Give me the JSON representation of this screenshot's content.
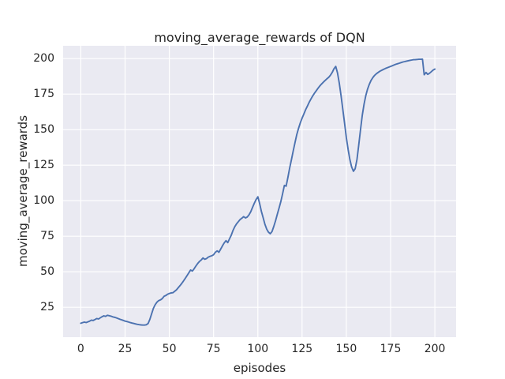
{
  "figure": {
    "title": "moving_average_rewards of DQN"
  },
  "chart_data": {
    "type": "line",
    "title": "moving_average_rewards of DQN",
    "xlabel": "episodes",
    "ylabel": "moving_average_rewards",
    "x_ticks": [
      0,
      25,
      50,
      75,
      100,
      125,
      150,
      175,
      200
    ],
    "y_ticks": [
      25,
      50,
      75,
      100,
      125,
      150,
      175,
      200
    ],
    "xlim": [
      -10,
      212
    ],
    "ylim": [
      4,
      209
    ],
    "grid": true,
    "legend": "none",
    "colors": {
      "line": "#4c72b0",
      "axes_background": "#eaeaf2",
      "gridline": "#ffffff",
      "figure_background": "#ffffff",
      "text": "#262626"
    },
    "series": [
      {
        "name": "DQN moving average reward",
        "points": [
          [
            0,
            13.8
          ],
          [
            1,
            14.2
          ],
          [
            2,
            14.6
          ],
          [
            3,
            14.3
          ],
          [
            4,
            14.8
          ],
          [
            5,
            15.3
          ],
          [
            6,
            16.0
          ],
          [
            7,
            15.7
          ],
          [
            8,
            16.4
          ],
          [
            9,
            17.1
          ],
          [
            10,
            16.8
          ],
          [
            11,
            17.6
          ],
          [
            12,
            18.4
          ],
          [
            13,
            19.0
          ],
          [
            14,
            18.6
          ],
          [
            15,
            19.4
          ],
          [
            16,
            19.1
          ],
          [
            17,
            18.8
          ],
          [
            18,
            18.3
          ],
          [
            19,
            18.0
          ],
          [
            20,
            17.6
          ],
          [
            21,
            17.1
          ],
          [
            22,
            16.6
          ],
          [
            23,
            16.2
          ],
          [
            24,
            15.8
          ],
          [
            25,
            15.3
          ],
          [
            26,
            15.0
          ],
          [
            27,
            14.6
          ],
          [
            28,
            14.2
          ],
          [
            29,
            13.9
          ],
          [
            30,
            13.6
          ],
          [
            31,
            13.3
          ],
          [
            32,
            13.0
          ],
          [
            33,
            12.8
          ],
          [
            34,
            12.6
          ],
          [
            35,
            12.5
          ],
          [
            36,
            12.5
          ],
          [
            37,
            12.7
          ],
          [
            38,
            13.6
          ],
          [
            39,
            16.5
          ],
          [
            40,
            20.5
          ],
          [
            41,
            24.3
          ],
          [
            42,
            26.8
          ],
          [
            43,
            28.6
          ],
          [
            44,
            29.7
          ],
          [
            45,
            30.2
          ],
          [
            46,
            31.1
          ],
          [
            47,
            32.7
          ],
          [
            48,
            33.3
          ],
          [
            49,
            34.2
          ],
          [
            50,
            34.7
          ],
          [
            51,
            35.1
          ],
          [
            52,
            35.3
          ],
          [
            53,
            36.2
          ],
          [
            54,
            37.3
          ],
          [
            55,
            38.7
          ],
          [
            56,
            40.2
          ],
          [
            57,
            41.8
          ],
          [
            58,
            43.5
          ],
          [
            59,
            45.4
          ],
          [
            60,
            47.3
          ],
          [
            61,
            49.3
          ],
          [
            62,
            51.2
          ],
          [
            63,
            50.5
          ],
          [
            64,
            52.1
          ],
          [
            65,
            54.0
          ],
          [
            66,
            55.8
          ],
          [
            67,
            57.2
          ],
          [
            68,
            58.3
          ],
          [
            69,
            59.7
          ],
          [
            70,
            58.8
          ],
          [
            71,
            59.3
          ],
          [
            72,
            60.3
          ],
          [
            73,
            60.9
          ],
          [
            74,
            61.3
          ],
          [
            75,
            62.0
          ],
          [
            76,
            63.7
          ],
          [
            77,
            64.7
          ],
          [
            78,
            63.7
          ],
          [
            79,
            65.9
          ],
          [
            80,
            68.2
          ],
          [
            81,
            70.3
          ],
          [
            82,
            71.9
          ],
          [
            83,
            70.5
          ],
          [
            84,
            73.2
          ],
          [
            85,
            75.8
          ],
          [
            86,
            79.2
          ],
          [
            87,
            81.8
          ],
          [
            88,
            83.7
          ],
          [
            89,
            85.3
          ],
          [
            90,
            86.8
          ],
          [
            91,
            87.8
          ],
          [
            92,
            88.8
          ],
          [
            93,
            87.9
          ],
          [
            94,
            88.5
          ],
          [
            95,
            90.0
          ],
          [
            96,
            92.3
          ],
          [
            97,
            95.2
          ],
          [
            98,
            98.2
          ],
          [
            99,
            100.8
          ],
          [
            100,
            102.8
          ],
          [
            101,
            98.1
          ],
          [
            102,
            92.6
          ],
          [
            103,
            88.0
          ],
          [
            104,
            83.5
          ],
          [
            105,
            80.0
          ],
          [
            106,
            77.9
          ],
          [
            107,
            76.8
          ],
          [
            108,
            78.3
          ],
          [
            109,
            81.8
          ],
          [
            110,
            85.9
          ],
          [
            111,
            90.4
          ],
          [
            112,
            94.9
          ],
          [
            113,
            99.4
          ],
          [
            114,
            105.0
          ],
          [
            115,
            110.8
          ],
          [
            116,
            110.2
          ],
          [
            117,
            116.5
          ],
          [
            118,
            123.0
          ],
          [
            119,
            129.0
          ],
          [
            120,
            135.0
          ],
          [
            121,
            141.0
          ],
          [
            122,
            146.5
          ],
          [
            123,
            151.0
          ],
          [
            124,
            154.8
          ],
          [
            125,
            158.0
          ],
          [
            126,
            161.0
          ],
          [
            127,
            164.0
          ],
          [
            128,
            166.6
          ],
          [
            129,
            169.2
          ],
          [
            130,
            171.6
          ],
          [
            131,
            173.7
          ],
          [
            132,
            175.6
          ],
          [
            133,
            177.4
          ],
          [
            134,
            179.1
          ],
          [
            135,
            180.7
          ],
          [
            136,
            182.1
          ],
          [
            137,
            183.4
          ],
          [
            138,
            184.6
          ],
          [
            139,
            185.7
          ],
          [
            140,
            186.8
          ],
          [
            141,
            188.2
          ],
          [
            142,
            190.2
          ],
          [
            143,
            192.8
          ],
          [
            144,
            194.5
          ],
          [
            145,
            190.0
          ],
          [
            146,
            183.0
          ],
          [
            147,
            174.0
          ],
          [
            148,
            164.5
          ],
          [
            149,
            154.5
          ],
          [
            150,
            144.5
          ],
          [
            151,
            136.0
          ],
          [
            152,
            129.0
          ],
          [
            153,
            123.8
          ],
          [
            154,
            120.7
          ],
          [
            155,
            122.5
          ],
          [
            156,
            129.0
          ],
          [
            157,
            139.0
          ],
          [
            158,
            150.0
          ],
          [
            159,
            160.0
          ],
          [
            160,
            168.0
          ],
          [
            161,
            174.0
          ],
          [
            162,
            178.5
          ],
          [
            163,
            182.0
          ],
          [
            164,
            184.7
          ],
          [
            165,
            186.7
          ],
          [
            166,
            188.2
          ],
          [
            167,
            189.4
          ],
          [
            168,
            190.3
          ],
          [
            169,
            191.1
          ],
          [
            170,
            191.8
          ],
          [
            171,
            192.4
          ],
          [
            172,
            193.0
          ],
          [
            173,
            193.5
          ],
          [
            174,
            194.0
          ],
          [
            175,
            194.5
          ],
          [
            176,
            195.0
          ],
          [
            177,
            195.5
          ],
          [
            178,
            196.0
          ],
          [
            179,
            196.4
          ],
          [
            180,
            196.8
          ],
          [
            181,
            197.2
          ],
          [
            182,
            197.6
          ],
          [
            183,
            197.9
          ],
          [
            184,
            198.2
          ],
          [
            185,
            198.5
          ],
          [
            186,
            198.8
          ],
          [
            187,
            199.0
          ],
          [
            188,
            199.2
          ],
          [
            189,
            199.3
          ],
          [
            190,
            199.4
          ],
          [
            191,
            199.5
          ],
          [
            192,
            199.5
          ],
          [
            193,
            199.6
          ],
          [
            194,
            188.6
          ],
          [
            195,
            190.2
          ],
          [
            196,
            188.9
          ],
          [
            197,
            189.7
          ],
          [
            198,
            190.8
          ],
          [
            199,
            191.9
          ],
          [
            200,
            192.6
          ]
        ]
      }
    ]
  }
}
